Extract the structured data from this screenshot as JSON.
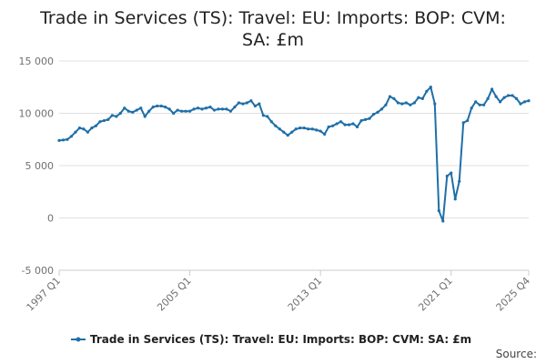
{
  "chart_data": {
    "type": "line",
    "title": "Trade in Services (TS): Travel: EU: Imports: BOP: CVM: SA: £m",
    "source": "Source:",
    "categories": [
      "1997 Q1",
      null,
      null,
      null,
      null,
      null,
      null,
      null,
      null,
      null,
      null,
      null,
      null,
      null,
      null,
      null,
      null,
      null,
      null,
      null,
      null,
      null,
      null,
      null,
      null,
      null,
      null,
      null,
      null,
      null,
      null,
      null,
      "2005 Q1",
      null,
      null,
      null,
      null,
      null,
      null,
      null,
      null,
      null,
      null,
      null,
      null,
      null,
      null,
      null,
      null,
      null,
      null,
      null,
      null,
      null,
      null,
      null,
      null,
      null,
      null,
      null,
      null,
      null,
      null,
      null,
      "2013 Q1",
      null,
      null,
      null,
      null,
      null,
      null,
      null,
      null,
      null,
      null,
      null,
      null,
      null,
      null,
      null,
      null,
      null,
      null,
      null,
      null,
      null,
      null,
      null,
      null,
      null,
      null,
      null,
      null,
      null,
      null,
      null,
      "2021 Q1",
      null,
      null,
      null,
      null,
      null,
      null,
      null,
      null,
      null,
      null,
      null,
      null,
      null,
      null,
      null,
      null,
      null,
      null,
      "2025 Q4"
    ],
    "series": [
      {
        "name": "Trade in Services (TS): Travel: EU: Imports: BOP: CVM: SA: £m",
        "color": "#1f6fa8",
        "values": [
          7400,
          7450,
          7500,
          7800,
          8200,
          8600,
          8500,
          8200,
          8600,
          8800,
          9200,
          9300,
          9400,
          9800,
          9700,
          10000,
          10500,
          10200,
          10100,
          10300,
          10500,
          9700,
          10200,
          10600,
          10700,
          10700,
          10600,
          10400,
          10000,
          10300,
          10200,
          10200,
          10200,
          10400,
          10500,
          10400,
          10500,
          10600,
          10300,
          10400,
          10400,
          10400,
          10200,
          10600,
          11000,
          10900,
          11000,
          11200,
          10700,
          10900,
          9800,
          9700,
          9200,
          8800,
          8500,
          8200,
          7900,
          8200,
          8500,
          8600,
          8600,
          8500,
          8500,
          8400,
          8300,
          8000,
          8700,
          8800,
          9000,
          9200,
          8900,
          8900,
          9000,
          8700,
          9300,
          9400,
          9500,
          9900,
          10100,
          10400,
          10800,
          11600,
          11400,
          11000,
          10900,
          11000,
          10800,
          11000,
          11500,
          11400,
          12100,
          12500,
          10900,
          700,
          -300,
          4000,
          4300,
          1800,
          3500,
          9100,
          9300,
          10500,
          11100,
          10800,
          10800,
          11400,
          12300,
          11600,
          11100,
          11500,
          11700,
          11700,
          11400,
          10900,
          11100,
          11200
        ]
      }
    ],
    "ylim": [
      -5000,
      15000
    ],
    "yticks": [
      {
        "value": -5000,
        "label": "-5 000"
      },
      0,
      {
        "value": 5000,
        "label": "5 000"
      },
      {
        "value": 10000,
        "label": "10 000"
      },
      {
        "value": 15000,
        "label": "15 000"
      }
    ],
    "grid": true
  }
}
